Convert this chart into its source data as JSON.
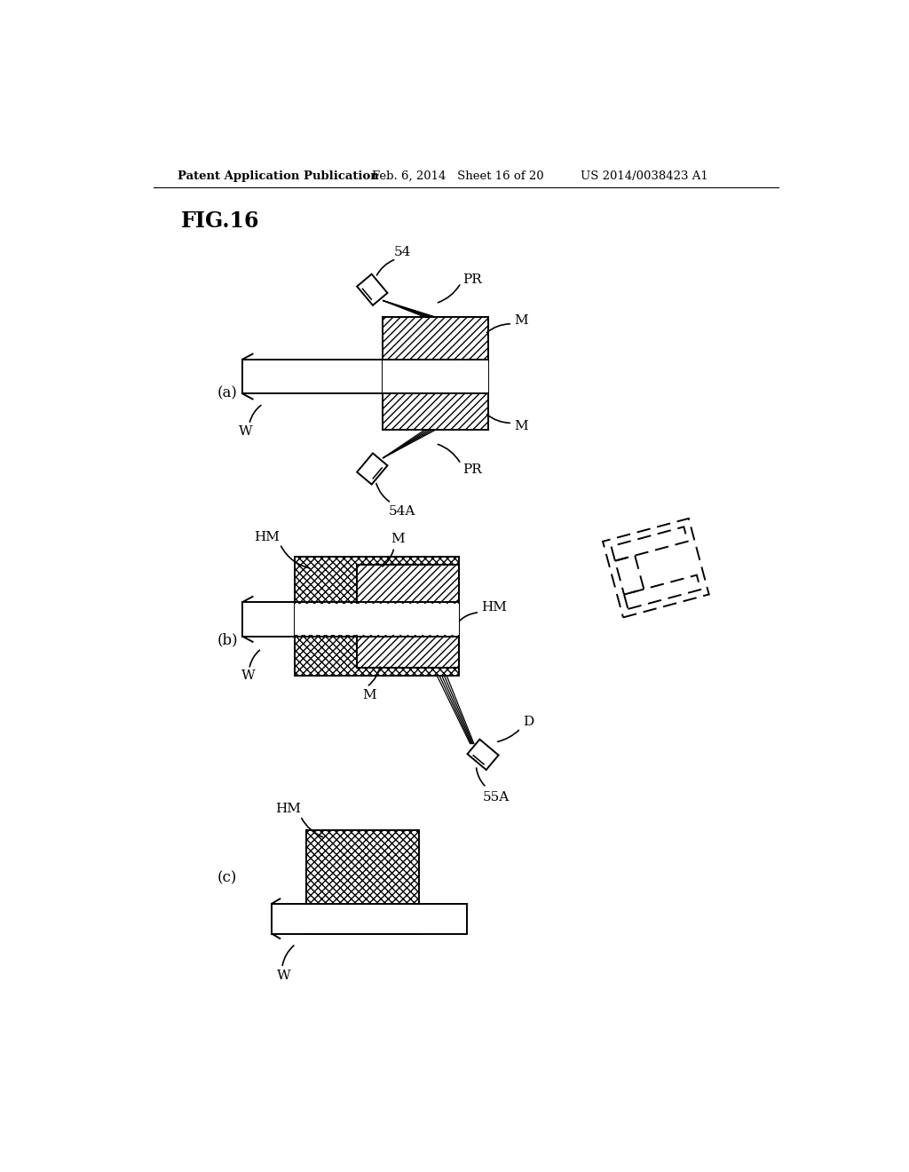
{
  "bg_color": "#ffffff",
  "line_color": "#000000",
  "fig_title": "FIG.16",
  "header_left": "Patent Application Publication",
  "header_mid": "Feb. 6, 2014   Sheet 16 of 20",
  "header_right": "US 2014/0038423 A1",
  "label_a": "(a)",
  "label_b": "(b)",
  "label_c": "(c)"
}
